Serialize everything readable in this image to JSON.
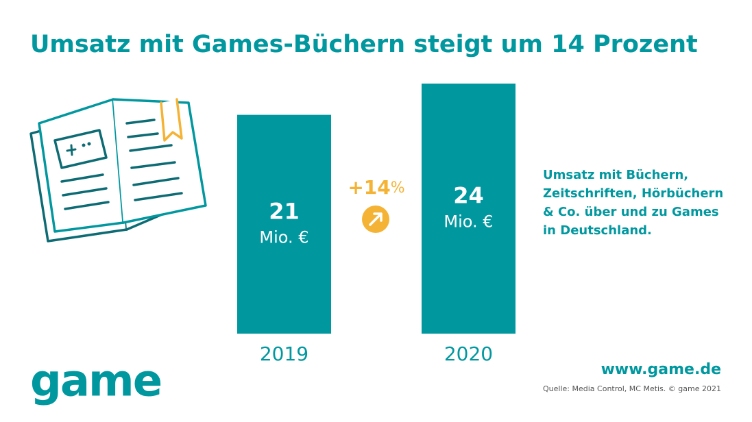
{
  "title": "Umsatz mit Games-Büchern steigt um 14 Prozent",
  "chart_data": {
    "type": "bar",
    "categories": [
      "2019",
      "2020"
    ],
    "values": [
      21,
      24
    ],
    "unit": "Mio. €",
    "color": "#00979f",
    "annotation": {
      "value": "+14",
      "unit": "%"
    },
    "annotation_color": "#f5b335"
  },
  "description": [
    "Umsatz mit Büchern,",
    "Zeitschriften, Hörbüchern",
    "& Co. über und zu Games",
    "in Deutschland."
  ],
  "logo": "game",
  "website": "www.game.de",
  "source": "Quelle: Media Control, MC Metis. © game 2021"
}
